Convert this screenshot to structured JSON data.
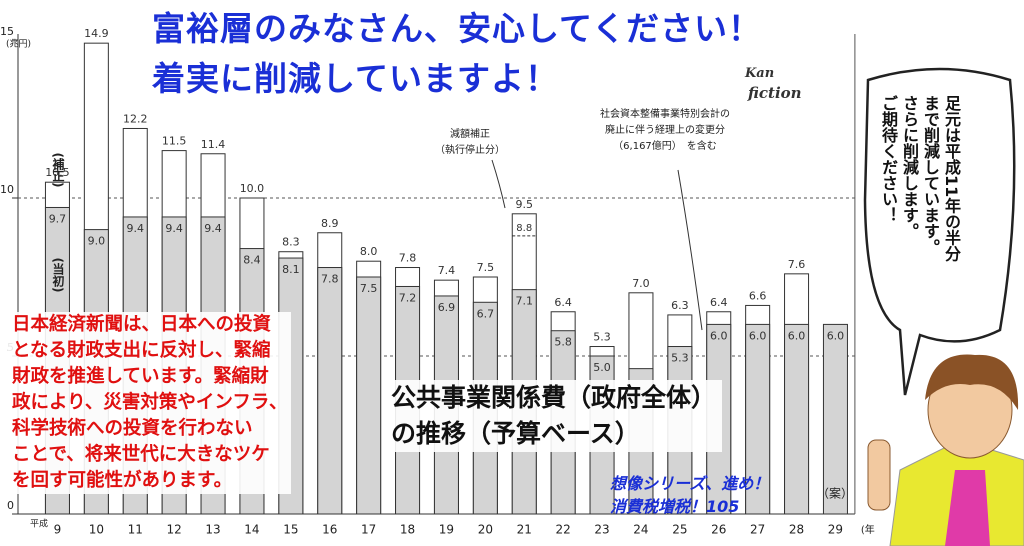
{
  "chart_data": {
    "type": "bar",
    "y_axis_label": "(兆円)",
    "x_axis_label": "平成",
    "x_unit": "(年",
    "categories": [
      "9",
      "10",
      "11",
      "12",
      "13",
      "14",
      "15",
      "16",
      "17",
      "18",
      "19",
      "20",
      "21",
      "22",
      "23",
      "24",
      "25",
      "26",
      "27",
      "28",
      "29"
    ],
    "series": [
      {
        "name": "(補正)",
        "color": "#ffffff",
        "values": [
          10.5,
          14.9,
          12.2,
          11.5,
          11.4,
          10.0,
          8.3,
          8.9,
          8.0,
          7.8,
          7.4,
          7.5,
          9.5,
          6.4,
          5.3,
          7.0,
          6.3,
          6.4,
          6.6,
          7.6,
          null
        ],
        "value_labels": [
          "10.5",
          "14.9",
          "12.2",
          "11.5",
          "11.4",
          "10.0",
          "8.3",
          "8.9",
          "8.0",
          "7.8",
          "7.4",
          "7.5",
          "9.5",
          "6.4",
          "5.3",
          "7.0",
          "6.3",
          "6.4",
          "6.6",
          "7.6",
          null
        ]
      },
      {
        "name": "(当初)",
        "color": "#d4d4d4",
        "values": [
          9.7,
          9.0,
          9.4,
          9.4,
          9.4,
          8.4,
          8.1,
          7.8,
          7.5,
          7.2,
          6.9,
          6.7,
          7.1,
          5.8,
          5.0,
          4.6,
          5.3,
          6.0,
          6.0,
          6.0,
          6.0
        ],
        "value_labels": [
          "9.7",
          "9.0",
          "9.4",
          "9.4",
          "9.4",
          "8.4",
          "8.1",
          "7.8",
          "7.5",
          "7.2",
          "6.9",
          "6.7",
          "7.1",
          "5.8",
          "5.0",
          null,
          "5.3",
          "6.0",
          "6.0",
          "6.0",
          "6.0"
        ]
      }
    ],
    "ylim": [
      0,
      15
    ],
    "yticks": [
      0,
      5,
      10,
      15
    ],
    "grid": true,
    "annotations": [
      {
        "text": "8.8",
        "value": 8.8
      },
      {
        "lines": [
          "減額補正",
          "（執行停止分）"
        ]
      },
      {
        "lines": [
          "社会資本整備事業特別会計の",
          "廃止に伴う経理上の変更分",
          "（6,167億円）　を含む"
        ]
      },
      {
        "text": "（案）"
      }
    ]
  },
  "overlay": {
    "headline": [
      "富裕層のみなさん、安心してください！",
      "着実に削減していますよ！"
    ],
    "logo": [
      "Kan",
      "fiction"
    ],
    "note": [
      "日本経済新聞は、日本への投資",
      "となる財政支出に反対し、緊縮",
      "財政を推進しています。緊縮財",
      "政により、災害対策やインフラ、",
      "科学技術への投資を行わない",
      "ことで、将来世代に大きなツケ",
      "を回す可能性があります。"
    ],
    "chart_title": [
      "公共事業関係費（政府全体）",
      "の推移（予算ベース）"
    ],
    "series_tag": [
      "想像シリーズ、進め！",
      "消費税増税！105"
    ],
    "speech": [
      "足元は平成11年の半分",
      "まで削減しています。",
      "さらに削減します。",
      "ご期待ください！"
    ]
  }
}
